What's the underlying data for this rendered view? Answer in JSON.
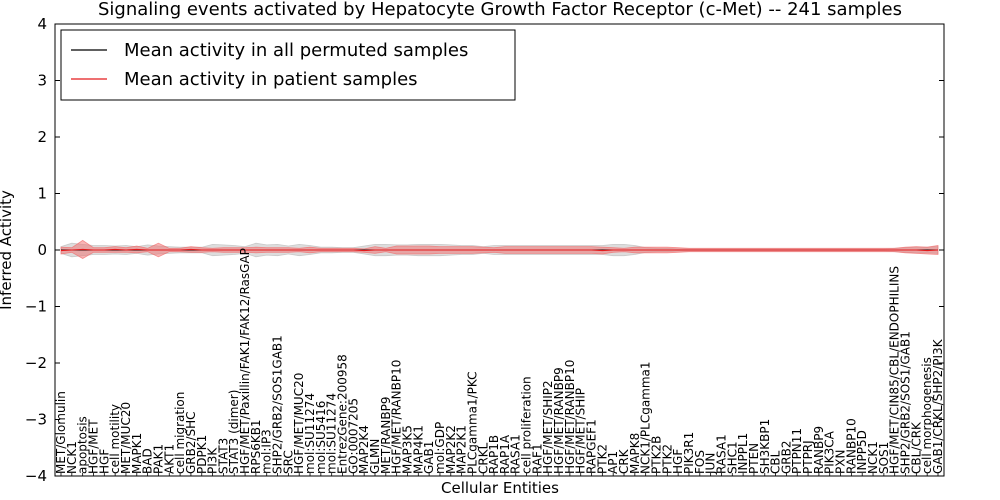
{
  "chart_data": {
    "type": "line",
    "title": "Signaling events activated by Hepatocyte Growth Factor Receptor (c-Met) -- 241 samples",
    "xlabel": "Cellular Entities",
    "ylabel": "Inferred Activity",
    "ylim": [
      -4,
      4
    ],
    "yticks": [
      -4,
      -3,
      -2,
      -1,
      0,
      1,
      2,
      3,
      4
    ],
    "ytick_labels": [
      "−4",
      "−3",
      "−2",
      "−1",
      "0",
      "1",
      "2",
      "3",
      "4"
    ],
    "grid": false,
    "legend_position": "top-left",
    "categories": [
      "MET/Glomulin",
      "NCK1",
      "apoptosis",
      "HGF/MET",
      "HGF",
      "cell motility",
      "MET/MUC20",
      "MAPK1",
      "BAD",
      "PAK1",
      "AKT1",
      "cell migration",
      "GRB2/SHC",
      "PDPK1",
      "PI3K",
      "STAT3",
      "STAT3 (dimer)",
      "HGF/MET/Paxillin/FAK1/FAK12/RasGAP",
      "RPS6KB1",
      "mol:IP3",
      "SHP2/GRB2/SOS1GAB1",
      "SRC",
      "HGF/MET/MUC20",
      "mol:SU11274",
      "mol:SU5416",
      "mol:SU11274",
      "EntrezGene:200958",
      "GO:0007205",
      "MAP2K4",
      "GLMN",
      "MET/RANBP9",
      "HGF/MET/RANBP10",
      "MAP3K5",
      "MAP4K1",
      "GAB1",
      "mol:GDP",
      "MAP2K2",
      "MAP2K1",
      "PLCgamma1/PKC",
      "CRKL",
      "RAP1B",
      "RAP1A",
      "RASA1",
      "cell proliferation",
      "RAF1",
      "HGF/MET/SHIP2",
      "HGF/MET/RANBP9",
      "HGF/MET/RANBP10",
      "HGF/MET/SHIP",
      "RAPGEF1",
      "PTK2",
      "AP1",
      "CRK",
      "MAPK8",
      "NCK1/PLCgamma1",
      "PTK2B",
      "PTK2",
      "HGF",
      "PIK3R1",
      "FOS",
      "JUN",
      "RASA1",
      "SHC1",
      "INPPL1",
      "PTEN",
      "SH3KBP1",
      "CBL",
      "GRB2",
      "PTPN11",
      "PTPRJ",
      "RANBP9",
      "PIK3CA",
      "PXN",
      "RANBP10",
      "INPP5D",
      "NCK1",
      "SOS1",
      "HGF/MET/CIN85/CBL/ENDOPHILINS",
      "SHP2/GRB2/SOS1/GAB1",
      "CBL/CRK",
      "cell morphogenesis",
      "GAB1/CRKL/SHP2/PI3K"
    ],
    "series": [
      {
        "name": "Mean activity in all permuted samples",
        "color": "#000000"
      },
      {
        "name": "Mean activity in patient samples",
        "color": "#e31a1c"
      }
    ],
    "band_colors": {
      "permuted": "#bbbbbb",
      "patient": "#f26b6b"
    },
    "permuted_mean": [
      0.0,
      0.0,
      0.0,
      0.0,
      0.0,
      0.0,
      0.0,
      0.0,
      0.0,
      0.0,
      0.0,
      0.0,
      0.0,
      0.0,
      0.0,
      0.0,
      0.0,
      0.0,
      0.0,
      0.0,
      0.0,
      0.0,
      0.0,
      0.0,
      0.0,
      0.0,
      0.0,
      0.0,
      0.0,
      0.0,
      0.0,
      0.0,
      0.0,
      0.0,
      0.0,
      0.0,
      0.0,
      0.0,
      0.0,
      0.0,
      0.0,
      0.0,
      0.0,
      0.0,
      0.0,
      0.0,
      0.0,
      0.0,
      0.0,
      0.0,
      0.0,
      0.0,
      0.0,
      0.0,
      0.0,
      0.0,
      0.0,
      0.0,
      0.0,
      0.0,
      0.0,
      0.0,
      0.0,
      0.0,
      0.0,
      0.0,
      0.0,
      0.0,
      0.0,
      0.0,
      0.0,
      0.0,
      0.0,
      0.0,
      0.0,
      0.0,
      0.0,
      0.0,
      0.0,
      0.0,
      0.0,
      0.0
    ],
    "permuted_spread": [
      0.06,
      0.12,
      0.1,
      0.08,
      0.08,
      0.07,
      0.08,
      0.06,
      0.09,
      0.07,
      0.06,
      0.05,
      0.05,
      0.05,
      0.1,
      0.09,
      0.08,
      0.06,
      0.12,
      0.09,
      0.1,
      0.07,
      0.1,
      0.08,
      0.05,
      0.05,
      0.04,
      0.04,
      0.07,
      0.1,
      0.1,
      0.09,
      0.09,
      0.1,
      0.1,
      0.1,
      0.09,
      0.08,
      0.08,
      0.06,
      0.08,
      0.08,
      0.08,
      0.08,
      0.08,
      0.08,
      0.08,
      0.08,
      0.08,
      0.08,
      0.08,
      0.1,
      0.1,
      0.08,
      0.04,
      0.03,
      0.03,
      0.02,
      0.02,
      0.02,
      0.02,
      0.02,
      0.02,
      0.02,
      0.02,
      0.02,
      0.02,
      0.02,
      0.02,
      0.02,
      0.02,
      0.02,
      0.02,
      0.02,
      0.02,
      0.02,
      0.02,
      0.03,
      0.04,
      0.05,
      0.05,
      0.06
    ],
    "patient_mean": [
      -0.01,
      0.0,
      0.01,
      0.0,
      0.0,
      0.01,
      0.0,
      0.01,
      0.0,
      0.0,
      0.0,
      0.0,
      0.01,
      0.0,
      0.0,
      0.0,
      0.0,
      0.0,
      0.0,
      0.0,
      0.0,
      0.0,
      0.0,
      0.0,
      0.0,
      0.0,
      0.0,
      0.0,
      -0.01,
      0.0,
      0.0,
      0.0,
      0.0,
      0.0,
      0.0,
      0.0,
      0.0,
      0.0,
      0.0,
      0.0,
      0.0,
      0.0,
      0.0,
      0.0,
      0.0,
      0.0,
      0.0,
      0.0,
      0.0,
      0.0,
      -0.01,
      0.0,
      0.0,
      0.0,
      0.0,
      0.0,
      0.0,
      0.0,
      0.0,
      0.0,
      0.0,
      0.0,
      0.0,
      0.0,
      0.0,
      0.0,
      0.0,
      0.0,
      0.0,
      0.0,
      0.0,
      0.0,
      0.0,
      0.0,
      0.0,
      0.0,
      0.0,
      0.0,
      0.0,
      0.0,
      -0.01,
      0.0
    ],
    "patient_spread": [
      0.06,
      0.04,
      0.16,
      0.04,
      0.04,
      0.05,
      0.04,
      0.06,
      0.03,
      0.12,
      0.03,
      0.03,
      0.05,
      0.04,
      0.03,
      0.04,
      0.04,
      0.04,
      0.05,
      0.04,
      0.04,
      0.04,
      0.03,
      0.05,
      0.03,
      0.03,
      0.03,
      0.03,
      0.03,
      0.06,
      0.03,
      0.07,
      0.07,
      0.07,
      0.07,
      0.06,
      0.06,
      0.06,
      0.06,
      0.05,
      0.04,
      0.06,
      0.06,
      0.06,
      0.06,
      0.06,
      0.06,
      0.06,
      0.06,
      0.06,
      0.06,
      0.04,
      0.03,
      0.05,
      0.05,
      0.05,
      0.05,
      0.04,
      0.03,
      0.03,
      0.03,
      0.03,
      0.03,
      0.03,
      0.03,
      0.03,
      0.03,
      0.03,
      0.03,
      0.03,
      0.03,
      0.03,
      0.03,
      0.03,
      0.03,
      0.03,
      0.03,
      0.03,
      0.05,
      0.06,
      0.06,
      0.08
    ]
  }
}
